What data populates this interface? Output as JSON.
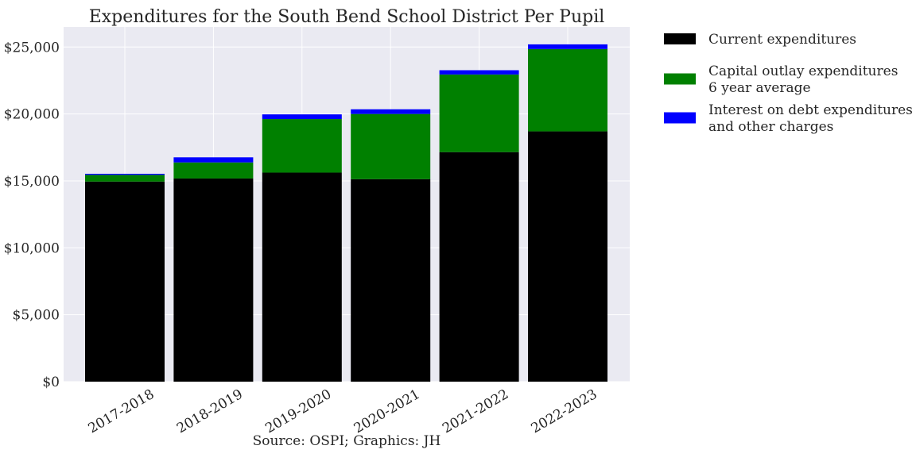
{
  "chart_data": {
    "type": "bar",
    "stacked": true,
    "title": "Expenditures for the South Bend School District Per Pupil",
    "caption": "Source: OSPI; Graphics: JH",
    "categories": [
      "2017-2018",
      "2018-2019",
      "2019-2020",
      "2020-2021",
      "2021-2022",
      "2022-2023"
    ],
    "series": [
      {
        "name": "Current expenditures",
        "color": "#000000",
        "values": [
          14950,
          15180,
          15620,
          15130,
          17150,
          18700
        ]
      },
      {
        "name": "Capital outlay expenditures\n6 year average",
        "color": "#008000",
        "values": [
          500,
          1200,
          4000,
          4870,
          5800,
          6150
        ]
      },
      {
        "name": "Interest on debt expenditures\nand other charges",
        "color": "#0000ff",
        "values": [
          80,
          380,
          350,
          350,
          320,
          350
        ]
      }
    ],
    "ylim": [
      0,
      26500
    ],
    "yticks": [
      0,
      5000,
      10000,
      15000,
      20000,
      25000
    ],
    "ytick_labels": [
      "$0",
      "$5,000",
      "$10,000",
      "$15,000",
      "$20,000",
      "$25,000"
    ],
    "xlabel": "",
    "ylabel": "",
    "grid": true,
    "legend_position": "outside-right-top",
    "background_color": "#eaeaf2"
  }
}
